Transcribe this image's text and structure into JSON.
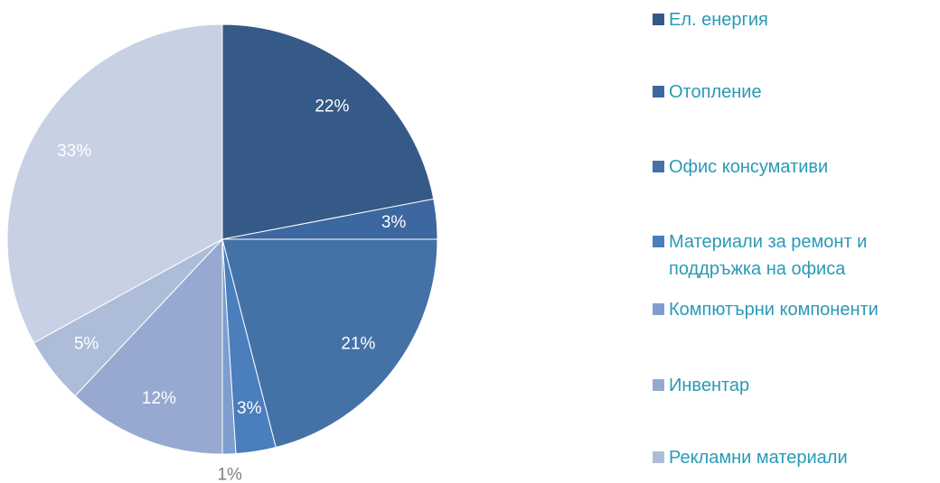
{
  "chart_data": {
    "type": "pie",
    "categories": [
      "Ел. енергия",
      "Отопление",
      "Офис консумативи",
      "Материали за ремонт и поддръжка на офиса",
      "Компютърни компоненти",
      "Инвентар",
      "Рекламни материали",
      null
    ],
    "values": [
      22,
      3,
      21,
      3,
      1,
      12,
      5,
      33
    ],
    "value_labels": [
      "22%",
      "3%",
      "21%",
      "3%",
      "1%",
      "12%",
      "5%",
      "33%"
    ],
    "colors": [
      "#355a87",
      "#3d67a0",
      "#4472a7",
      "#4a7ebd",
      "#7f9ecf",
      "#97a9d1",
      "#adbcd9",
      "#c8d0e3"
    ],
    "legend": "right"
  }
}
